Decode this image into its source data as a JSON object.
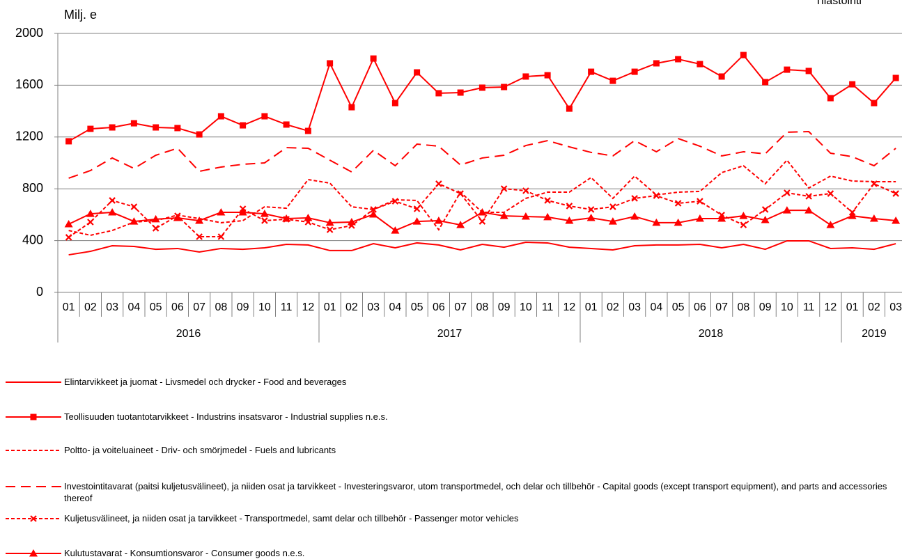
{
  "chart_data": {
    "type": "line",
    "ylabel": "Milj. e",
    "corner_text": "Tilastointi",
    "categories": [
      "01",
      "02",
      "03",
      "04",
      "05",
      "06",
      "07",
      "08",
      "09",
      "10",
      "11",
      "12",
      "01",
      "02",
      "03",
      "04",
      "05",
      "06",
      "07",
      "08",
      "09",
      "10",
      "11",
      "12",
      "01",
      "02",
      "03",
      "04",
      "05",
      "06",
      "07",
      "08",
      "09",
      "10",
      "11",
      "12",
      "01",
      "02",
      "03"
    ],
    "year_groups": [
      {
        "label": "2016",
        "months": 12
      },
      {
        "label": "2017",
        "months": 12
      },
      {
        "label": "2018",
        "months": 12
      },
      {
        "label": "2019",
        "months": 3
      }
    ],
    "ylim": [
      0,
      2000
    ],
    "yticks": [
      0,
      400,
      800,
      1200,
      1600,
      2000
    ],
    "grid": true,
    "series": [
      {
        "name": "Elintarvikkeet ja juomat - Livsmedel och drycker - Food and beverages",
        "color": "#ff0000",
        "dash": "solid",
        "marker": "none",
        "values": [
          290,
          317,
          360,
          355,
          333,
          339,
          312,
          339,
          333,
          344,
          371,
          366,
          323,
          323,
          376,
          344,
          382,
          366,
          328,
          371,
          349,
          387,
          382,
          349,
          339,
          328,
          360,
          366,
          366,
          371,
          344,
          371,
          333,
          398,
          398,
          339,
          344,
          333,
          376
        ]
      },
      {
        "name": "Teollisuuden tuotantotarvikkeet - Industrins insatsvaror - Industrial supplies n.e.s.",
        "color": "#ff0000",
        "dash": "solid",
        "marker": "square",
        "values": [
          1167,
          1263,
          1274,
          1306,
          1274,
          1269,
          1220,
          1360,
          1290,
          1360,
          1296,
          1247,
          1769,
          1430,
          1806,
          1462,
          1699,
          1538,
          1543,
          1581,
          1586,
          1667,
          1677,
          1419,
          1704,
          1634,
          1704,
          1769,
          1801,
          1763,
          1667,
          1833,
          1624,
          1720,
          1710,
          1500,
          1607,
          1462,
          1656
        ]
      },
      {
        "name": "Poltto- ja voiteluaineet - Driv- och smörjmedel - Fuels and lubricants",
        "color": "#ff0000",
        "dash": "short",
        "marker": "none",
        "values": [
          478,
          441,
          478,
          543,
          554,
          597,
          570,
          538,
          554,
          661,
          650,
          871,
          844,
          661,
          640,
          715,
          710,
          484,
          774,
          618,
          618,
          726,
          774,
          774,
          887,
          726,
          898,
          753,
          774,
          780,
          925,
          978,
          839,
          1021,
          806,
          898,
          860,
          855,
          855
        ]
      },
      {
        "name": "Investointitavarat (paitsi kuljetusvälineet), ja niiden osat ja tarvikkeet - Investeringsvaror, utom transportmedel, och delar och tillbehör - Capital goods (except transport equipment), and parts and accessories thereof",
        "color": "#ff0000",
        "dash": "long",
        "marker": "none",
        "values": [
          882,
          941,
          1038,
          957,
          1059,
          1113,
          935,
          968,
          989,
          1000,
          1118,
          1113,
          1021,
          930,
          1097,
          978,
          1145,
          1129,
          984,
          1038,
          1059,
          1134,
          1172,
          1124,
          1081,
          1054,
          1172,
          1086,
          1188,
          1129,
          1054,
          1086,
          1070,
          1237,
          1242,
          1075,
          1048,
          978,
          1113
        ]
      },
      {
        "name": "Kuljetusvälineet, ja niiden osat ja tarvikkeet - Transportmedel, samt delar och tillbehör - Passenger motor vehicles",
        "color": "#ff0000",
        "dash": "short",
        "marker": "cross",
        "values": [
          425,
          543,
          710,
          661,
          495,
          591,
          430,
          430,
          645,
          554,
          565,
          543,
          484,
          516,
          640,
          704,
          645,
          839,
          763,
          548,
          801,
          785,
          710,
          667,
          640,
          661,
          726,
          747,
          688,
          704,
          597,
          521,
          640,
          769,
          742,
          763,
          618,
          839,
          763
        ]
      },
      {
        "name": "Kulutustavarat - Konsumtionsvaror - Consumer goods n.e.s.",
        "color": "#ff0000",
        "dash": "solid",
        "marker": "triangle",
        "values": [
          527,
          607,
          618,
          548,
          565,
          575,
          554,
          618,
          618,
          607,
          570,
          575,
          538,
          543,
          602,
          478,
          548,
          554,
          521,
          618,
          591,
          586,
          581,
          554,
          575,
          548,
          586,
          538,
          538,
          570,
          570,
          591,
          559,
          634,
          634,
          521,
          591,
          570,
          554
        ]
      }
    ]
  }
}
